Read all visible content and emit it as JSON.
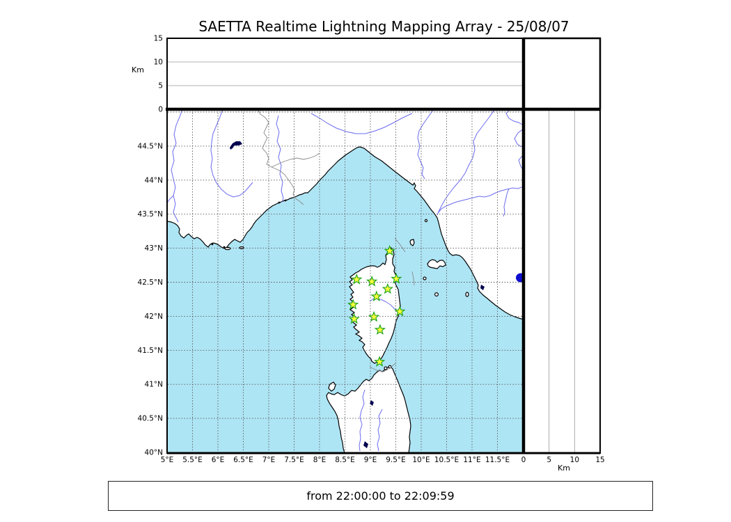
{
  "title": "SAETTA Realtime Lightning Mapping Array - 25/08/07",
  "footer_text": "from 22:00:00 to 22:09:59",
  "altitude_axis": {
    "unit_label": "Km",
    "tick_labels": [
      "0",
      "5",
      "10",
      "15"
    ],
    "tick_values": [
      0,
      5,
      10,
      15
    ],
    "max_km": 15
  },
  "right_axis": {
    "unit_label": "Km",
    "tick_labels": [
      "0",
      "5",
      "10",
      "15"
    ],
    "tick_values": [
      0,
      5,
      10,
      15
    ],
    "max_km": 15
  },
  "map_axes": {
    "lon_tick_labels": [
      "5°E",
      "5.5°E",
      "6°E",
      "6.5°E",
      "7°E",
      "7.5°E",
      "8°E",
      "8.5°E",
      "9°E",
      "9.5°E",
      "10°E",
      "10.5°E",
      "11°E",
      "11.5°E"
    ],
    "lat_tick_labels": [
      "40°N",
      "40.5°N",
      "41°N",
      "41.5°N",
      "42°N",
      "42.5°N",
      "43°N",
      "43.5°N",
      "44°N",
      "44.5°N"
    ],
    "lon_min": 5.0,
    "lon_max": 12.0,
    "lat_min": 40.0,
    "lat_max": 45.0,
    "grid_step_deg": 0.5
  },
  "stations": [
    {
      "lon": 9.38,
      "lat": 42.96
    },
    {
      "lon": 8.73,
      "lat": 42.54
    },
    {
      "lon": 9.03,
      "lat": 42.51
    },
    {
      "lon": 9.51,
      "lat": 42.55
    },
    {
      "lon": 9.34,
      "lat": 42.4
    },
    {
      "lon": 9.12,
      "lat": 42.29
    },
    {
      "lon": 8.66,
      "lat": 42.17
    },
    {
      "lon": 9.58,
      "lat": 42.07
    },
    {
      "lon": 9.07,
      "lat": 41.99
    },
    {
      "lon": 8.68,
      "lat": 41.96
    },
    {
      "lon": 9.19,
      "lat": 41.8
    },
    {
      "lon": 9.18,
      "lat": 41.33
    }
  ],
  "colors": {
    "sea": "#aee5f5",
    "land": "#ffffff",
    "coast": "#000000",
    "river": "#6b6bf0",
    "country_border": "#888888",
    "grid": "#555555",
    "panel_grid": "#999999",
    "star_fill": "#fdfd3d",
    "star_stroke": "#15a015",
    "lake": "#0d0dcf",
    "dark_lake": "#000050"
  }
}
